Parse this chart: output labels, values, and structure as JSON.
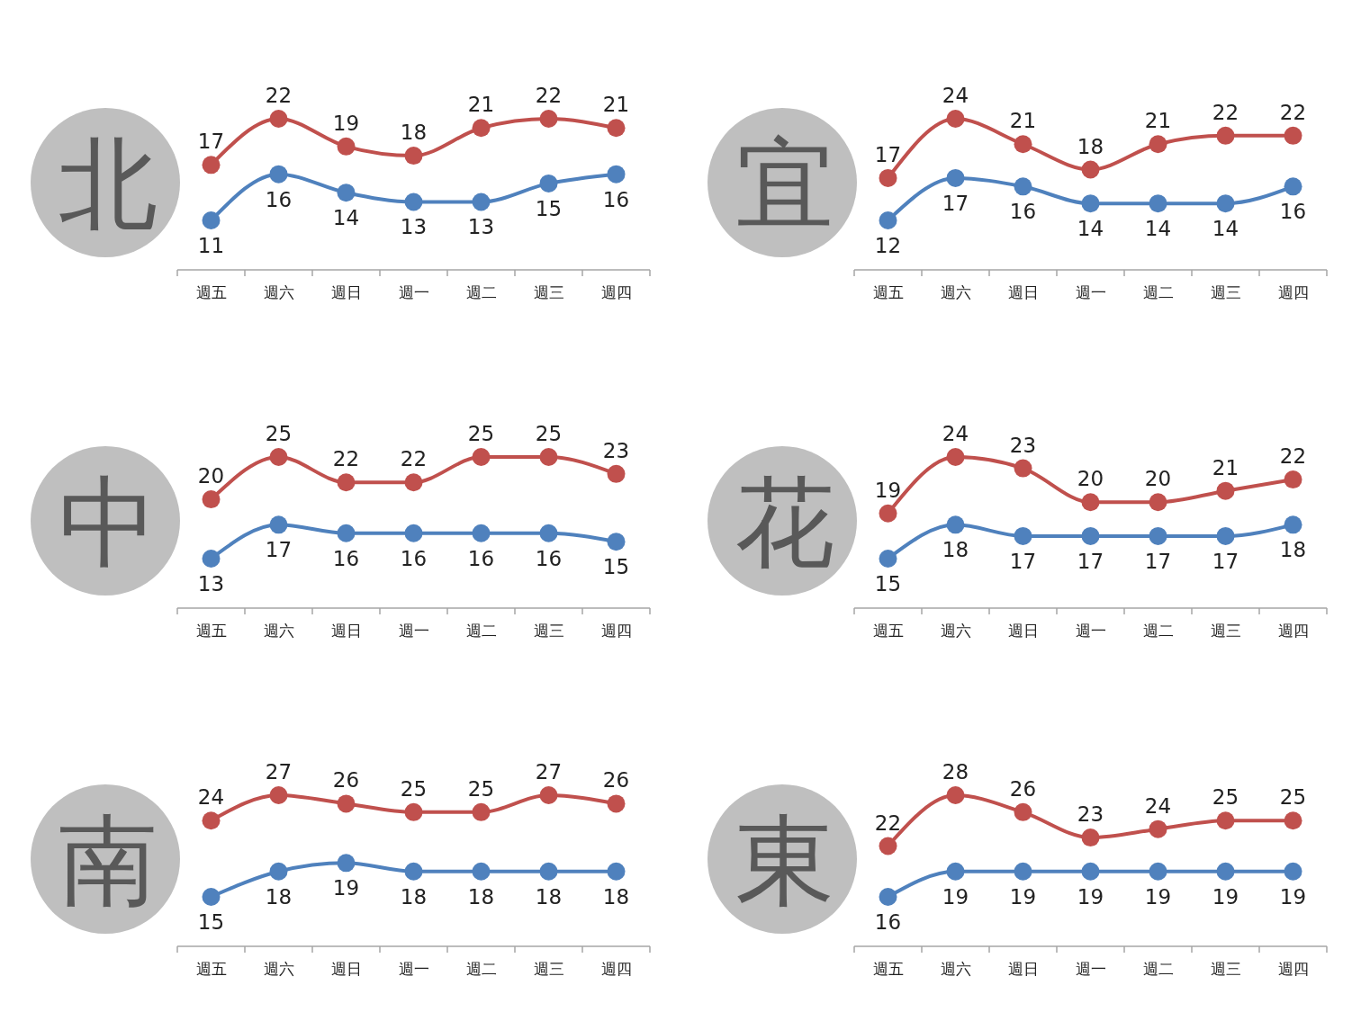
{
  "chart_data": [
    {
      "type": "line",
      "title": "北",
      "categories": [
        "週五",
        "週六",
        "週日",
        "週一",
        "週二",
        "週三",
        "週四"
      ],
      "marker": "circle",
      "data_labels": true,
      "series": [
        {
          "color": "#c0504d",
          "values": [
            17,
            22,
            19,
            18,
            21,
            22,
            21
          ]
        },
        {
          "color": "#4f81bd",
          "values": [
            11,
            16,
            14,
            13,
            13,
            15,
            16
          ]
        }
      ]
    },
    {
      "type": "line",
      "title": "宜",
      "categories": [
        "週五",
        "週六",
        "週日",
        "週一",
        "週二",
        "週三",
        "週四"
      ],
      "marker": "circle",
      "data_labels": true,
      "series": [
        {
          "color": "#c0504d",
          "values": [
            17,
            24,
            21,
            18,
            21,
            22,
            22
          ]
        },
        {
          "color": "#4f81bd",
          "values": [
            12,
            17,
            16,
            14,
            14,
            14,
            16
          ]
        }
      ]
    },
    {
      "type": "line",
      "title": "中",
      "categories": [
        "週五",
        "週六",
        "週日",
        "週一",
        "週二",
        "週三",
        "週四"
      ],
      "marker": "circle",
      "data_labels": true,
      "series": [
        {
          "color": "#c0504d",
          "values": [
            20,
            25,
            22,
            22,
            25,
            25,
            23
          ]
        },
        {
          "color": "#4f81bd",
          "values": [
            13,
            17,
            16,
            16,
            16,
            16,
            15
          ]
        }
      ]
    },
    {
      "type": "line",
      "title": "花",
      "categories": [
        "週五",
        "週六",
        "週日",
        "週一",
        "週二",
        "週三",
        "週四"
      ],
      "marker": "circle",
      "data_labels": true,
      "series": [
        {
          "color": "#c0504d",
          "values": [
            19,
            24,
            23,
            20,
            20,
            21,
            22
          ]
        },
        {
          "color": "#4f81bd",
          "values": [
            15,
            18,
            17,
            17,
            17,
            17,
            18
          ]
        }
      ]
    },
    {
      "type": "line",
      "title": "南",
      "categories": [
        "週五",
        "週六",
        "週日",
        "週一",
        "週二",
        "週三",
        "週四"
      ],
      "marker": "circle",
      "data_labels": true,
      "series": [
        {
          "color": "#c0504d",
          "values": [
            24,
            27,
            26,
            25,
            25,
            27,
            26
          ]
        },
        {
          "color": "#4f81bd",
          "values": [
            15,
            18,
            19,
            18,
            18,
            18,
            18
          ]
        }
      ]
    },
    {
      "type": "line",
      "title": "東",
      "categories": [
        "週五",
        "週六",
        "週日",
        "週一",
        "週二",
        "週三",
        "週四"
      ],
      "marker": "circle",
      "data_labels": true,
      "series": [
        {
          "color": "#c0504d",
          "values": [
            22,
            28,
            26,
            23,
            24,
            25,
            25
          ]
        },
        {
          "color": "#4f81bd",
          "values": [
            16,
            19,
            19,
            19,
            19,
            19,
            19
          ]
        }
      ]
    }
  ]
}
